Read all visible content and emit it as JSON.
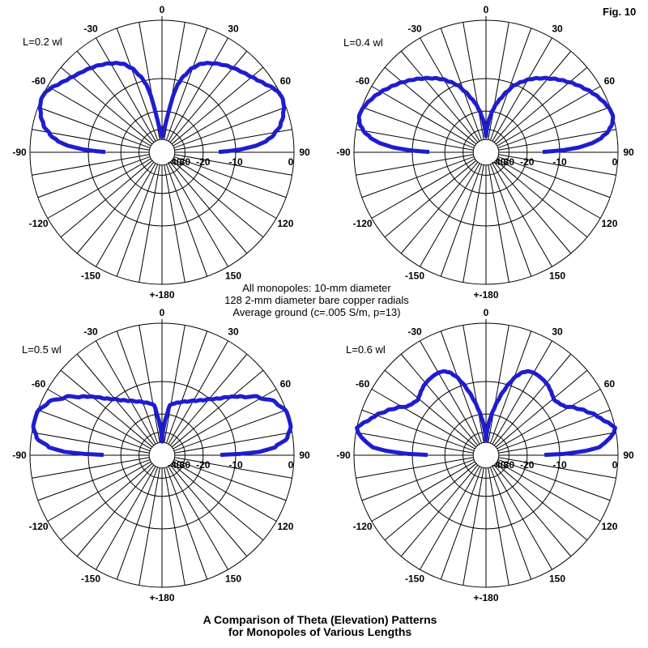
{
  "figure_label": "Fig. 10",
  "annotation": {
    "line1": "All monopoles: 10-mm diameter",
    "line2": "128 2-mm diameter bare copper radials",
    "line3": "Average ground (c=.005 S/m, p=13)"
  },
  "title": {
    "line1": "A Comparison of Theta (Elevation) Patterns",
    "line2": "for Monopoles of Various Lengths"
  },
  "colors": {
    "trace": "#1d1dd0",
    "grid": "#000000",
    "text": "#000000",
    "background": "#ffffff"
  },
  "polar_grid": {
    "spoke_step_deg": 10,
    "rings_db": [
      0,
      -10,
      -20,
      -30,
      -40
    ],
    "outer_db": 0,
    "min_db": -40,
    "scale_base_per_2db": 0.89,
    "radius_rule": "radius_fraction = 0.89^(-dB/2)  (ARRL-style log scale)",
    "angle_labels": [
      {
        "deg": 0,
        "text": "0"
      },
      {
        "deg": 30,
        "text": "30"
      },
      {
        "deg": 60,
        "text": "60"
      },
      {
        "deg": 90,
        "text": "90"
      },
      {
        "deg": 120,
        "text": "120"
      },
      {
        "deg": 150,
        "text": "150"
      },
      {
        "deg": 180,
        "text": "+-180"
      },
      {
        "deg": -150,
        "text": "-150"
      },
      {
        "deg": -120,
        "text": "-120"
      },
      {
        "deg": -90,
        "text": "-90"
      },
      {
        "deg": -60,
        "text": "-60"
      },
      {
        "deg": -30,
        "text": "-30"
      }
    ],
    "radial_labels": [
      {
        "db": -40,
        "text": "-40"
      },
      {
        "db": -30,
        "text": "30"
      },
      {
        "db": -20,
        "text": "-20"
      },
      {
        "db": -10,
        "text": "-10"
      },
      {
        "db": 0,
        "text": "0"
      }
    ]
  },
  "chart_data": [
    {
      "type": "line",
      "projection": "polar",
      "position": "top-left",
      "label": "L=0.2 wl",
      "theta_unit": "deg from zenith",
      "db_normalized_to_peak": 0,
      "mirror_symmetric": true,
      "theta_deg": [
        0,
        4,
        7,
        9,
        11,
        13,
        16,
        20,
        24,
        28,
        33,
        38,
        43,
        48,
        52,
        56,
        60,
        63,
        66,
        69,
        73,
        77,
        81,
        84,
        86,
        88,
        89,
        89.7
      ],
      "db": [
        -37,
        -31,
        -27,
        -21,
        -14.5,
        -11,
        -8.7,
        -6.6,
        -5.3,
        -4.6,
        -3.9,
        -3.3,
        -2.8,
        -2.3,
        -1.8,
        -1.2,
        -0.5,
        -0.1,
        0,
        -0.2,
        -0.7,
        -1.4,
        -2.6,
        -4.0,
        -5.8,
        -9.0,
        -12.0,
        -14.5
      ]
    },
    {
      "type": "line",
      "projection": "polar",
      "position": "top-right",
      "label": "L=0.4 wl",
      "theta_unit": "deg from zenith",
      "db_normalized_to_peak": 0,
      "mirror_symmetric": true,
      "theta_deg": [
        0,
        3,
        6,
        9,
        12,
        15,
        19,
        23,
        27,
        31,
        35,
        40,
        44,
        48,
        52,
        56,
        60,
        64,
        68,
        71,
        74,
        77,
        80,
        83,
        85,
        87,
        88.5,
        89.7
      ],
      "db": [
        -36,
        -28,
        -23,
        -19.5,
        -16.8,
        -14.9,
        -12.4,
        -10.2,
        -8.8,
        -7.5,
        -6.5,
        -5.4,
        -4.5,
        -3.7,
        -2.9,
        -2.2,
        -1.5,
        -0.9,
        -0.4,
        -0.1,
        0,
        -0.3,
        -1.0,
        -2.2,
        -3.6,
        -6.0,
        -9.5,
        -14.5
      ]
    },
    {
      "type": "line",
      "projection": "polar",
      "position": "bottom-left",
      "label": "L=0.5 wl",
      "theta_unit": "deg from zenith",
      "db_normalized_to_peak": 0,
      "mirror_symmetric": true,
      "theta_deg": [
        0,
        3,
        6,
        9,
        12,
        17,
        24,
        31,
        36,
        41,
        45,
        48,
        51,
        54,
        59,
        65,
        71,
        77,
        82,
        86,
        88,
        89,
        89.7
      ],
      "db": [
        -39,
        -27,
        -21.5,
        -16.4,
        -15.8,
        -15.0,
        -13.9,
        -12.6,
        -11.4,
        -9.9,
        -8.6,
        -7.2,
        -6.0,
        -4.8,
        -2.7,
        -0.9,
        0,
        0,
        -0.7,
        -2.6,
        -5.2,
        -9.0,
        -14.0
      ]
    },
    {
      "type": "line",
      "projection": "polar",
      "position": "bottom-right",
      "label": "L=0.6 wl",
      "theta_unit": "deg from zenith",
      "db_normalized_to_peak": 0,
      "mirror_symmetric": true,
      "theta_deg": [
        0,
        3,
        6,
        9,
        12,
        15,
        18,
        21,
        24,
        27,
        30,
        33,
        37,
        41,
        45,
        48,
        51,
        55,
        58,
        62,
        66,
        70,
        73,
        76,
        78,
        80,
        82,
        84,
        86,
        87.5,
        89,
        89.7
      ],
      "db": [
        -38,
        -28,
        -22.5,
        -18.5,
        -15,
        -12,
        -9.5,
        -7.6,
        -6.4,
        -5.8,
        -5.6,
        -5.6,
        -5.7,
        -5.9,
        -6.3,
        -6.7,
        -7.0,
        -6.6,
        -6.1,
        -4.6,
        -3.3,
        -2.1,
        -1.4,
        -0.5,
        0,
        -0.3,
        -0.9,
        -1.7,
        -2.6,
        -4.8,
        -9.0,
        -14.0
      ]
    }
  ]
}
